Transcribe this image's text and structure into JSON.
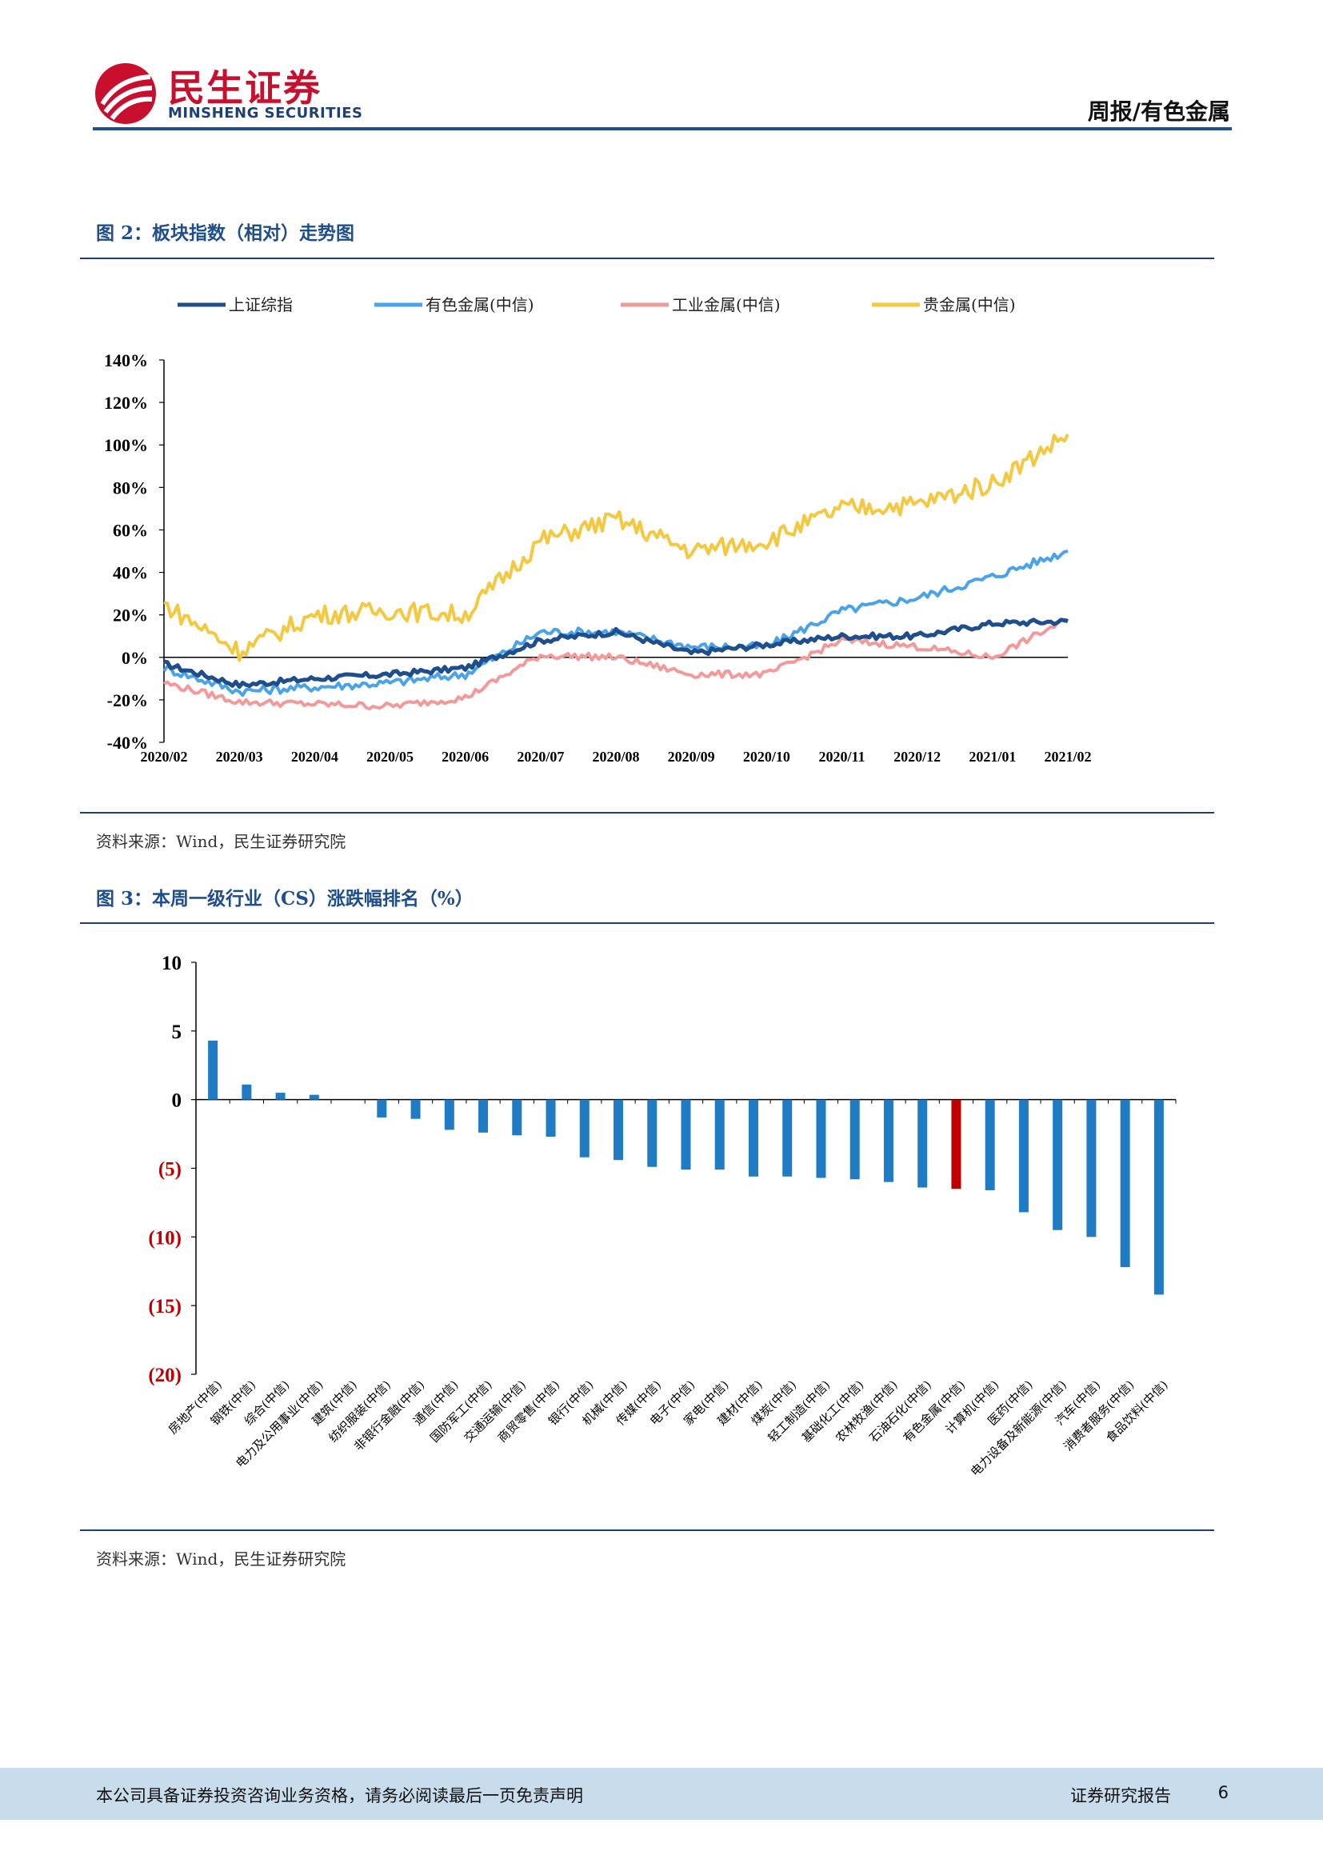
{
  "header": {
    "logo_cn": "民生证券",
    "logo_en": "MINSHENG SECURITIES",
    "report_category": "周报/有色金属"
  },
  "figure2": {
    "title": "图 2：板块指数（相对）走势图",
    "source": "资料来源：Wind，民生证券研究院"
  },
  "figure3": {
    "title": "图 3：本周一级行业（CS）涨跌幅排名（%）",
    "source": "资料来源：Wind，民生证券研究院"
  },
  "footer": {
    "disclaimer": "本公司具备证券投资咨询业务资格，请务必阅读最后一页免责声明",
    "report_type": "证券研究报告",
    "page_number": "6"
  },
  "colors": {
    "brand_red": "#c8102e",
    "brand_blue": "#1f4e8c",
    "sse": "#1f4e8c",
    "nonferrous": "#4aa3e8",
    "industrial": "#f29a9a",
    "precious": "#f5c842",
    "bar": "#1f7bc4",
    "bar_highlight": "#c00000"
  },
  "chart_data": [
    {
      "type": "line",
      "legend": [
        "上证综指",
        "有色金属(中信)",
        "工业金属(中信)",
        "贵金属(中信)"
      ],
      "x": [
        "2020/02",
        "2020/03",
        "2020/04",
        "2020/05",
        "2020/06",
        "2020/07",
        "2020/08",
        "2020/09",
        "2020/10",
        "2020/11",
        "2020/12",
        "2021/01",
        "2021/02"
      ],
      "ylim": [
        -40,
        140
      ],
      "yticks": [
        "140%",
        "120%",
        "100%",
        "80%",
        "60%",
        "40%",
        "20%",
        "0%",
        "-20%",
        "-40%"
      ],
      "series": [
        {
          "name": "上证综指",
          "values": [
            -3,
            -13,
            -10,
            -8,
            -5,
            8,
            12,
            2,
            6,
            10,
            10,
            16,
            17
          ]
        },
        {
          "name": "有色金属(中信)",
          "values": [
            -5,
            -16,
            -14,
            -12,
            -8,
            12,
            12,
            5,
            5,
            22,
            28,
            38,
            50
          ]
        },
        {
          "name": "工业金属(中信)",
          "values": [
            -12,
            -21,
            -22,
            -23,
            -19,
            1,
            0,
            -8,
            -8,
            8,
            5,
            0,
            18
          ]
        },
        {
          "name": "贵金属(中信)",
          "values": [
            25,
            3,
            20,
            22,
            20,
            55,
            65,
            50,
            55,
            70,
            72,
            82,
            105
          ]
        }
      ],
      "legend_position": "top"
    },
    {
      "type": "bar",
      "categories": [
        "房地产(中信)",
        "钢铁(中信)",
        "综合(中信)",
        "电力及公用事业(中信)",
        "建筑(中信)",
        "纺织服装(中信)",
        "非银行金融(中信)",
        "通信(中信)",
        "国防军工(中信)",
        "交通运输(中信)",
        "商贸零售(中信)",
        "银行(中信)",
        "机械(中信)",
        "传媒(中信)",
        "电子(中信)",
        "家电(中信)",
        "建材(中信)",
        "煤炭(中信)",
        "轻工制造(中信)",
        "基础化工(中信)",
        "农林牧渔(中信)",
        "石油石化(中信)",
        "有色金属(中信)",
        "计算机(中信)",
        "医药(中信)",
        "电力设备及新能源(中信)",
        "汽车(中信)",
        "消费者服务(中信)",
        "食品饮料(中信)"
      ],
      "values": [
        4.3,
        1.1,
        0.5,
        0.35,
        0,
        -1.3,
        -1.4,
        -2.2,
        -2.4,
        -2.6,
        -2.7,
        -4.2,
        -4.4,
        -4.9,
        -5.1,
        -5.1,
        -5.6,
        -5.6,
        -5.7,
        -5.8,
        -6.0,
        -6.4,
        -6.5,
        -6.6,
        -8.2,
        -9.5,
        -10.0,
        -12.2,
        -14.2
      ],
      "highlight": "有色金属(中信)",
      "ylim": [
        -20,
        10
      ],
      "yticks": [
        "10",
        "5",
        "0",
        "(5)",
        "(10)",
        "(15)",
        "(20)"
      ]
    }
  ]
}
